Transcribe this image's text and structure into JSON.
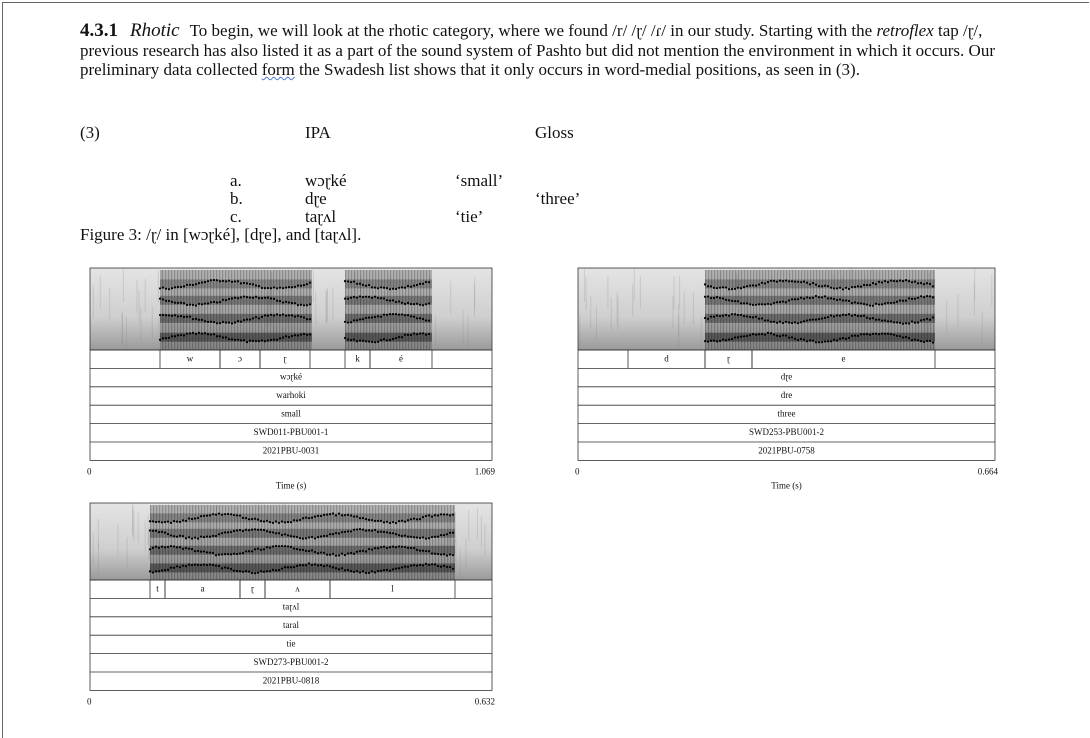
{
  "heading": {
    "number": "4.3.1",
    "title": "Rhotic"
  },
  "paragraph": [
    "To begin, we will look at the rhotic category, where we found /r/ /ɽ/ /ɾ/  in our study. Starting with the ",
    "retroflex",
    " tap /ɽ/, previous research has also listed it as a part of the sound system of Pashto but did not mention the environment in which it occurs. Our preliminary data collected ",
    "form",
    " the Swadesh list shows that it only occurs in word-medial positions, as seen in (3)."
  ],
  "example": {
    "number": "(3)",
    "headers": [
      "IPA",
      "Gloss"
    ],
    "rows": [
      [
        "a.",
        "wɔɽké",
        "‘small’"
      ],
      [
        "b.",
        "dɽe",
        "‘three’"
      ],
      [
        "c.",
        "taɽʌl",
        "‘tie’"
      ]
    ]
  },
  "caption": "Figure 3: /ɽ/ in [wɔɽké], [dɽe], and [taɽʌl].",
  "figures": [
    {
      "segments": [
        "w",
        "ɔ",
        "ɽ",
        "k",
        "é"
      ],
      "tiers": [
        "wɔɽké",
        "warhoki",
        "small",
        "SWD011-PBU001-1",
        "2021PBU-0031"
      ],
      "time_start": 0,
      "time_end": 1.069,
      "axis_label": "Time (s)"
    },
    {
      "segments": [
        "d",
        "ɽ",
        "e"
      ],
      "tiers": [
        "dɽe",
        "dre",
        "three",
        "SWD253-PBU001-2",
        "2021PBU-0758"
      ],
      "time_start": 0,
      "time_end": 0.664,
      "axis_label": "Time (s)"
    },
    {
      "segments": [
        "t",
        "a",
        "ɽ",
        "ʌ",
        "l"
      ],
      "tiers": [
        "taɽʌl",
        "taral",
        "tie",
        "SWD273-PBU001-2",
        "2021PBU-0818"
      ],
      "time_start": 0,
      "time_end": 0.632
    }
  ]
}
